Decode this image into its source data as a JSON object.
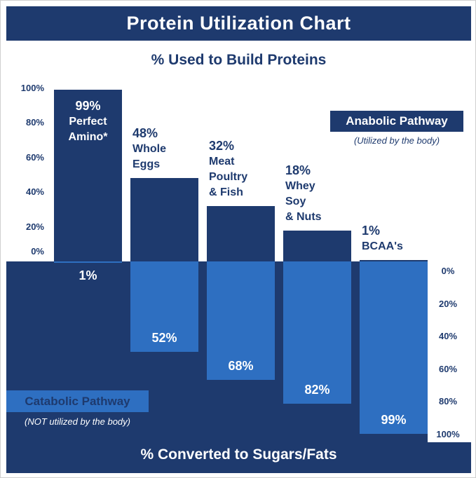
{
  "title": "Protein Utilization Chart",
  "top_section": {
    "title": "% Used to Build Proteins",
    "legend": {
      "label": "Anabolic Pathway",
      "sublabel": "(Utilized by the body)"
    }
  },
  "bottom_section": {
    "title": "% Converted to Sugars/Fats",
    "legend": {
      "label": "Catabolic Pathway",
      "sublabel": "(NOT utilized by the body)"
    }
  },
  "colors": {
    "navy": "#1e3a6e",
    "blue": "#2e6fc1",
    "panel_white": "#ffffff"
  },
  "chart_data": {
    "type": "bar",
    "title": "Protein Utilization Chart",
    "categories": [
      "Perfect Amino*",
      "Whole Eggs",
      "Meat Poultry & Fish",
      "Whey Soy & Nuts",
      "BCAA's"
    ],
    "category_lines": [
      [
        "Perfect",
        "Amino*"
      ],
      [
        "Whole",
        "Eggs"
      ],
      [
        "Meat",
        "Poultry",
        "& Fish"
      ],
      [
        "Whey",
        "Soy",
        "& Nuts"
      ],
      [
        "BCAA's"
      ]
    ],
    "series": [
      {
        "name": "Anabolic Pathway (% Used to Build Proteins)",
        "values": [
          99,
          48,
          32,
          18,
          1
        ]
      },
      {
        "name": "Catabolic Pathway (% Converted to Sugars/Fats)",
        "values": [
          1,
          52,
          68,
          82,
          99
        ]
      }
    ],
    "left_axis_ticks": [
      "100%",
      "80%",
      "60%",
      "40%",
      "20%",
      "0%"
    ],
    "right_axis_ticks": [
      "0%",
      "20%",
      "40%",
      "60%",
      "80%",
      "100%"
    ],
    "ylim_up": [
      0,
      100
    ],
    "ylim_down": [
      0,
      100
    ],
    "grid": false,
    "legend_position": "inline-boxes"
  }
}
